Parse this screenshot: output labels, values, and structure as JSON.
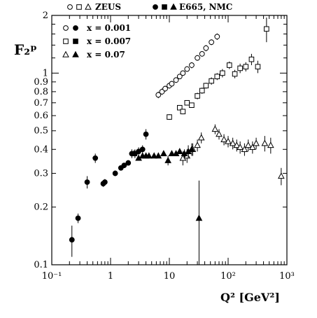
{
  "chart_data": {
    "type": "scatter",
    "title": "",
    "xlabel": "Q² [GeV²]",
    "ylabel": "F₂ᵖ",
    "xscale": "log",
    "yscale": "log",
    "xlim": [
      0.1,
      1000
    ],
    "ylim": [
      0.1,
      2
    ],
    "grid": false,
    "legend_position": "top-left",
    "x_tick_labels": [
      "10⁻¹",
      "1",
      "10",
      "10²",
      "10³"
    ],
    "y_tick_labels": [
      "0.1",
      "0.2",
      "0.3",
      "0.4",
      "0.5",
      "0.6",
      "0.7",
      "0.8",
      "0.9",
      "1",
      "2"
    ],
    "legend": {
      "header_left": "ZEUS",
      "header_right": "E665, NMC",
      "rows": [
        "x = 0.001",
        "x = 0.007",
        "x = 0.07"
      ]
    },
    "series": [
      {
        "experiment": "ZEUS",
        "x_bin": "x = 0.001",
        "marker": "circle",
        "filled": false,
        "points": [
          [
            6.5,
            0.77,
            0.03
          ],
          [
            7.5,
            0.8,
            0.03
          ],
          [
            8.5,
            0.83,
            0.03
          ],
          [
            10,
            0.86,
            0.03
          ],
          [
            11,
            0.88,
            0.03
          ],
          [
            13,
            0.92,
            0.03
          ],
          [
            15,
            0.96,
            0.03
          ],
          [
            17,
            1.0,
            0.03
          ],
          [
            20,
            1.05,
            0.03
          ],
          [
            24,
            1.1,
            0.04
          ],
          [
            30,
            1.2,
            0.04
          ],
          [
            36,
            1.26,
            0.04
          ],
          [
            42,
            1.35,
            0.05
          ],
          [
            52,
            1.45,
            0.05
          ],
          [
            65,
            1.55,
            0.06
          ]
        ]
      },
      {
        "experiment": "ZEUS",
        "x_bin": "x = 0.007",
        "marker": "square",
        "filled": false,
        "points": [
          [
            10,
            0.59,
            0.02
          ],
          [
            15,
            0.66,
            0.02
          ],
          [
            17,
            0.63,
            0.02
          ],
          [
            20,
            0.7,
            0.02
          ],
          [
            24,
            0.68,
            0.02
          ],
          [
            30,
            0.76,
            0.03
          ],
          [
            36,
            0.81,
            0.03
          ],
          [
            42,
            0.86,
            0.03
          ],
          [
            52,
            0.91,
            0.04
          ],
          [
            65,
            0.96,
            0.04
          ],
          [
            80,
            1.0,
            0.05
          ],
          [
            105,
            1.1,
            0.05
          ],
          [
            130,
            0.99,
            0.05
          ],
          [
            160,
            1.06,
            0.06
          ],
          [
            200,
            1.08,
            0.06
          ],
          [
            250,
            1.18,
            0.08
          ],
          [
            320,
            1.08,
            0.08
          ],
          [
            450,
            1.7,
            0.25
          ]
        ]
      },
      {
        "experiment": "ZEUS",
        "x_bin": "x = 0.07",
        "marker": "triangle",
        "filled": false,
        "points": [
          [
            17,
            0.36,
            0.03
          ],
          [
            20,
            0.37,
            0.03
          ],
          [
            25,
            0.4,
            0.03
          ],
          [
            30,
            0.42,
            0.03
          ],
          [
            35,
            0.46,
            0.03
          ],
          [
            60,
            0.51,
            0.03
          ],
          [
            70,
            0.48,
            0.03
          ],
          [
            85,
            0.45,
            0.03
          ],
          [
            100,
            0.44,
            0.03
          ],
          [
            120,
            0.43,
            0.03
          ],
          [
            140,
            0.42,
            0.03
          ],
          [
            160,
            0.41,
            0.03
          ],
          [
            190,
            0.4,
            0.03
          ],
          [
            220,
            0.42,
            0.03
          ],
          [
            260,
            0.41,
            0.03
          ],
          [
            300,
            0.43,
            0.03
          ],
          [
            420,
            0.43,
            0.04
          ],
          [
            530,
            0.42,
            0.04
          ],
          [
            800,
            0.29,
            0.03
          ]
        ]
      },
      {
        "experiment": "E665, NMC",
        "marker": "circle",
        "filled": true,
        "points": [
          [
            0.22,
            0.135,
            0.025
          ],
          [
            0.28,
            0.175,
            0.01
          ],
          [
            0.4,
            0.27,
            0.02
          ],
          [
            0.55,
            0.36,
            0.02
          ],
          [
            0.75,
            0.265,
            0.01
          ],
          [
            0.8,
            0.27,
            0.01
          ],
          [
            1.2,
            0.3,
            0.01
          ],
          [
            1.5,
            0.32,
            0.01
          ],
          [
            1.7,
            0.33,
            0.01
          ],
          [
            2.0,
            0.34,
            0.01
          ],
          [
            2.3,
            0.38,
            0.02
          ],
          [
            2.6,
            0.38,
            0.02
          ],
          [
            3.0,
            0.39,
            0.02
          ],
          [
            3.5,
            0.4,
            0.02
          ],
          [
            4.0,
            0.48,
            0.03
          ]
        ]
      },
      {
        "experiment": "E665, NMC",
        "marker": "triangle",
        "filled": true,
        "points": [
          [
            2.5,
            0.38,
            0.01
          ],
          [
            3.0,
            0.36,
            0.01
          ],
          [
            3.5,
            0.37,
            0.01
          ],
          [
            4.0,
            0.37,
            0.01
          ],
          [
            4.5,
            0.37,
            0.01
          ],
          [
            5.5,
            0.37,
            0.01
          ],
          [
            6.5,
            0.37,
            0.01
          ],
          [
            8.0,
            0.38,
            0.01
          ],
          [
            9.5,
            0.35,
            0.02
          ],
          [
            11,
            0.38,
            0.01
          ],
          [
            13,
            0.38,
            0.01
          ],
          [
            15,
            0.39,
            0.01
          ],
          [
            18,
            0.38,
            0.02
          ],
          [
            21,
            0.39,
            0.03
          ],
          [
            24,
            0.4,
            0.03
          ],
          [
            32,
            0.175,
            0.1
          ]
        ]
      }
    ]
  }
}
